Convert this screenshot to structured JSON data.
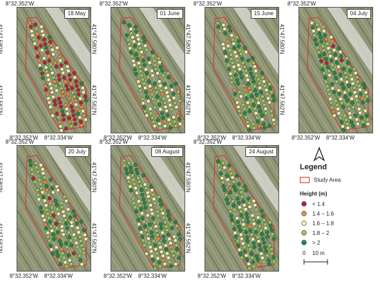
{
  "coords": {
    "lon_left": "8°32.352'W",
    "lon_right": "8°32.334'W",
    "lat_top": "41°47.580'N",
    "lat_bottom": "41°47.562'N"
  },
  "panels": [
    {
      "date": "18 May"
    },
    {
      "date": "01 June"
    },
    {
      "date": "15 June"
    },
    {
      "date": "04 July"
    },
    {
      "date": "20 July"
    },
    {
      "date": "08 August"
    },
    {
      "date": "24 August"
    }
  ],
  "legend": {
    "title": "Legend",
    "study_area": "Study Area",
    "height_title": "Height (m)",
    "classes": [
      {
        "label": "< 1.4",
        "color": "#c0202a"
      },
      {
        "label": "1.4 – 1.6",
        "color": "#f08a3a"
      },
      {
        "label": "1.6 – 1.8",
        "color": "#f4f0a8"
      },
      {
        "label": "1.8 – 2",
        "color": "#9cc75a"
      },
      {
        "label": "> 2",
        "color": "#1e8a3c"
      }
    ],
    "scale_zero": "0",
    "scale_label": "10 m",
    "north_icon": "north-arrow-icon"
  },
  "colors": {
    "study_area": "#e03030",
    "field": "#8f9676",
    "road": "#d7d6cf"
  },
  "panel_class_weights": [
    [
      0.32,
      0.3,
      0.26,
      0.08,
      0.04
    ],
    [
      0.0,
      0.05,
      0.35,
      0.3,
      0.3
    ],
    [
      0.0,
      0.03,
      0.3,
      0.32,
      0.35
    ],
    [
      0.02,
      0.04,
      0.24,
      0.3,
      0.4
    ],
    [
      0.03,
      0.03,
      0.24,
      0.32,
      0.38
    ],
    [
      0.0,
      0.02,
      0.26,
      0.32,
      0.4
    ],
    [
      0.0,
      0.02,
      0.22,
      0.3,
      0.46
    ]
  ]
}
